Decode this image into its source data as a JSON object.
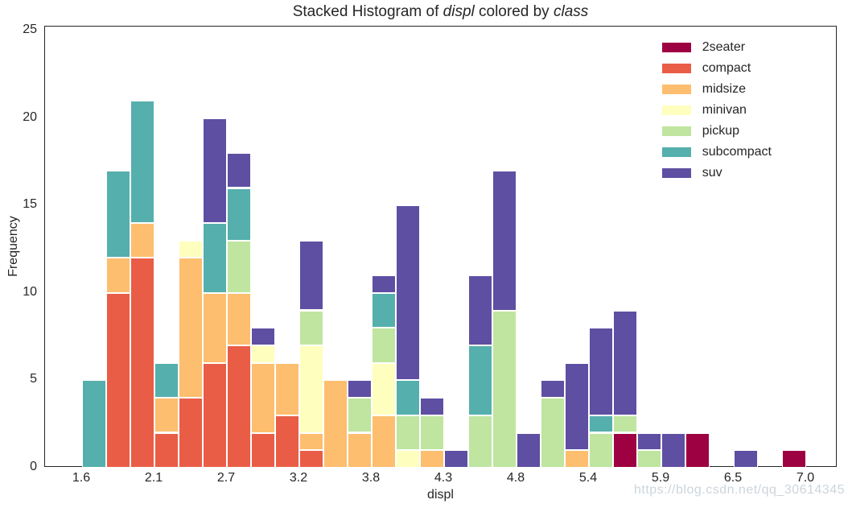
{
  "title": {
    "prefix": "Stacked Histogram of ",
    "var1": "displ",
    "middle": " colored by ",
    "var2": "class"
  },
  "watermark": "https://blog.csdn.net/qq_30614345",
  "colors": {
    "background": "#ffffff",
    "axis": "#262626",
    "text": "#262626",
    "bar_edge": "#ffffff",
    "watermark": "#ccd5dc"
  },
  "chart_data": {
    "type": "bar",
    "subtype": "stacked-histogram",
    "title": "Stacked Histogram of displ colored by class",
    "xlabel": "displ",
    "ylabel": "Frequency",
    "grid": false,
    "legend_position": "upper right",
    "legend_order_top_to_bottom": [
      "2seater",
      "compact",
      "midsize",
      "minivan",
      "pickup",
      "subcompact",
      "suv"
    ],
    "stack_order_bottom_to_top": [
      "2seater",
      "compact",
      "midsize",
      "minivan",
      "pickup",
      "subcompact",
      "suv"
    ],
    "x_ticks": [
      "1.6",
      "2.1",
      "2.7",
      "3.2",
      "3.8",
      "4.3",
      "4.8",
      "5.4",
      "5.9",
      "6.5",
      "7.0"
    ],
    "x_tick_values": [
      1.6,
      2.14,
      2.68,
      3.22,
      3.76,
      4.3,
      4.84,
      5.38,
      5.92,
      6.46,
      7.0
    ],
    "y_ticks": [
      0,
      5,
      10,
      15,
      20,
      25
    ],
    "xlim": [
      1.324,
      7.234
    ],
    "ylim": [
      0,
      25.23
    ],
    "bin_start": 1.6,
    "bin_width": 0.18,
    "bin_count": 30,
    "bin_totals": [
      5,
      17,
      21,
      6,
      13,
      20,
      18,
      8,
      6,
      13,
      5,
      5,
      11,
      15,
      4,
      1,
      11,
      17,
      2,
      5,
      6,
      8,
      9,
      2,
      2,
      2,
      0,
      1,
      0,
      1
    ],
    "grand_total": 234,
    "series": [
      {
        "name": "2seater",
        "color": "#9e0142",
        "total": 5,
        "values": [
          0,
          0,
          0,
          0,
          0,
          0,
          0,
          0,
          0,
          0,
          0,
          0,
          0,
          0,
          0,
          0,
          0,
          0,
          0,
          0,
          0,
          0,
          2,
          0,
          0,
          2,
          0,
          0,
          0,
          1
        ]
      },
      {
        "name": "compact",
        "color": "#e95d47",
        "total": 47,
        "values": [
          0,
          10,
          12,
          2,
          4,
          6,
          7,
          2,
          3,
          1,
          0,
          0,
          0,
          0,
          0,
          0,
          0,
          0,
          0,
          0,
          0,
          0,
          0,
          0,
          0,
          0,
          0,
          0,
          0,
          0
        ]
      },
      {
        "name": "midsize",
        "color": "#fdbe6f",
        "total": 41,
        "values": [
          0,
          2,
          2,
          2,
          8,
          4,
          3,
          4,
          3,
          1,
          5,
          2,
          3,
          0,
          1,
          0,
          0,
          0,
          0,
          0,
          1,
          0,
          0,
          0,
          0,
          0,
          0,
          0,
          0,
          0
        ]
      },
      {
        "name": "minivan",
        "color": "#feffbe",
        "total": 11,
        "values": [
          0,
          0,
          0,
          0,
          1,
          0,
          0,
          1,
          0,
          5,
          0,
          0,
          3,
          1,
          0,
          0,
          0,
          0,
          0,
          0,
          0,
          0,
          0,
          0,
          0,
          0,
          0,
          0,
          0,
          0
        ]
      },
      {
        "name": "pickup",
        "color": "#bfe5a0",
        "total": 33,
        "values": [
          0,
          0,
          0,
          0,
          0,
          0,
          3,
          0,
          0,
          2,
          0,
          2,
          2,
          2,
          2,
          0,
          3,
          9,
          0,
          4,
          0,
          2,
          1,
          1,
          0,
          0,
          0,
          0,
          0,
          0
        ]
      },
      {
        "name": "subcompact",
        "color": "#55afad",
        "total": 35,
        "values": [
          5,
          5,
          7,
          2,
          0,
          4,
          3,
          0,
          0,
          0,
          0,
          0,
          2,
          2,
          0,
          0,
          4,
          0,
          0,
          0,
          0,
          1,
          0,
          0,
          0,
          0,
          0,
          0,
          0,
          0
        ]
      },
      {
        "name": "suv",
        "color": "#5e4fa2",
        "total": 62,
        "values": [
          0,
          0,
          0,
          0,
          0,
          6,
          2,
          1,
          0,
          4,
          0,
          1,
          1,
          10,
          1,
          1,
          4,
          8,
          2,
          1,
          5,
          5,
          6,
          1,
          2,
          0,
          0,
          1,
          0,
          0
        ]
      }
    ]
  }
}
